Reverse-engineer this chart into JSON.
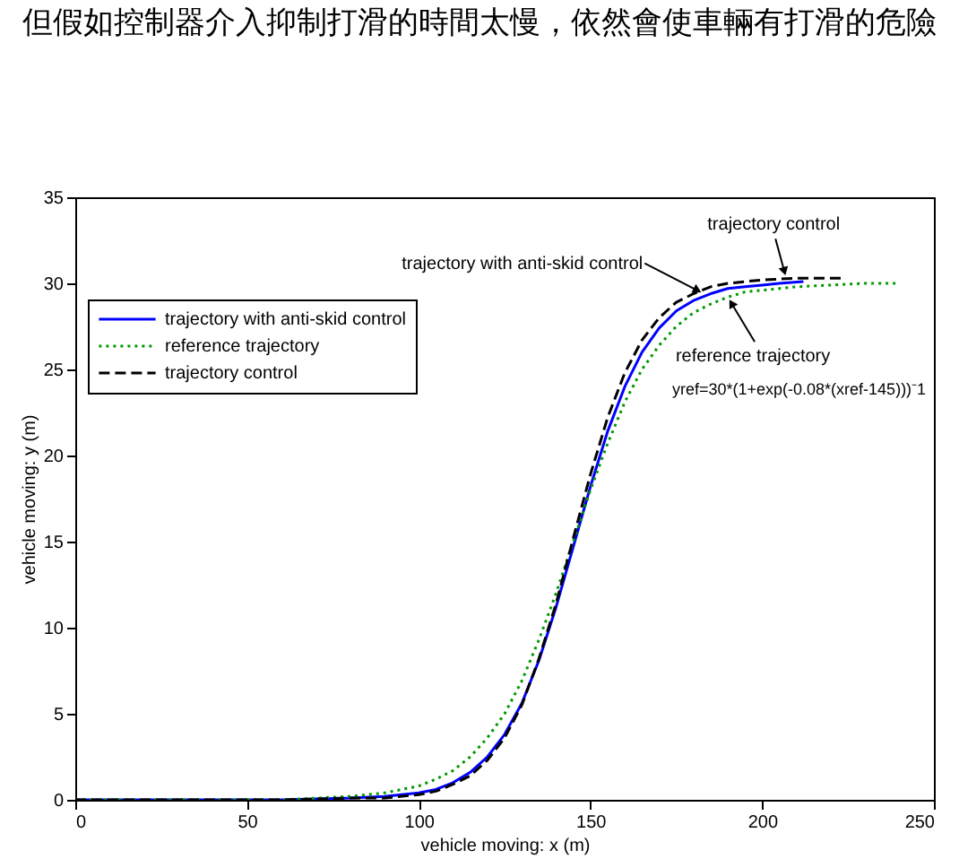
{
  "chart_data": {
    "type": "line",
    "xlabel": "vehicle moving: x (m)",
    "ylabel": "vehicle moving: y (m)",
    "xlim": [
      0,
      250
    ],
    "ylim": [
      0,
      35
    ],
    "xticks": [
      0,
      50,
      100,
      150,
      200,
      250
    ],
    "yticks": [
      0,
      5,
      10,
      15,
      20,
      25,
      30,
      35
    ],
    "legend": "top left",
    "series": [
      {
        "name": "trajectory with anti-skid control",
        "color": "#0000ff",
        "line_style": "solid",
        "x": [
          0,
          20,
          40,
          60,
          80,
          90,
          100,
          105,
          110,
          115,
          120,
          125,
          130,
          135,
          140,
          145,
          150,
          155,
          160,
          165,
          170,
          175,
          180,
          185,
          190,
          195,
          200,
          205,
          212
        ],
        "values": [
          0,
          0,
          0,
          0,
          0.1,
          0.2,
          0.4,
          0.6,
          1.0,
          1.6,
          2.5,
          3.8,
          5.6,
          8.1,
          11.2,
          14.7,
          18.2,
          21.4,
          24.0,
          26.0,
          27.4,
          28.4,
          29.0,
          29.4,
          29.7,
          29.8,
          29.9,
          30.0,
          30.1
        ]
      },
      {
        "name": "reference trajectory",
        "color": "#009900",
        "line_style": "dotted",
        "x": [
          0,
          20,
          40,
          60,
          80,
          90,
          100,
          105,
          110,
          115,
          120,
          125,
          130,
          135,
          140,
          145,
          150,
          155,
          160,
          165,
          170,
          175,
          180,
          185,
          190,
          195,
          200,
          210,
          220,
          230,
          240
        ],
        "values": [
          0,
          0,
          0,
          0,
          0.2,
          0.4,
          0.8,
          1.2,
          1.7,
          2.5,
          3.6,
          5.0,
          6.9,
          9.3,
          12.0,
          15.0,
          18.0,
          20.7,
          23.1,
          25.0,
          26.4,
          27.5,
          28.3,
          28.8,
          29.2,
          29.5,
          29.6,
          29.8,
          29.9,
          30.0,
          30.0
        ]
      },
      {
        "name": "trajectory control",
        "color": "#000000",
        "line_style": "dashed",
        "x": [
          0,
          20,
          40,
          60,
          80,
          90,
          100,
          105,
          110,
          115,
          120,
          125,
          130,
          135,
          140,
          145,
          150,
          155,
          160,
          165,
          170,
          175,
          180,
          185,
          190,
          195,
          200,
          210,
          223
        ],
        "values": [
          0,
          0,
          0,
          0,
          0.1,
          0.1,
          0.3,
          0.5,
          0.9,
          1.4,
          2.3,
          3.6,
          5.5,
          8.2,
          11.4,
          15.2,
          18.9,
          22.2,
          24.8,
          26.7,
          28.0,
          28.9,
          29.4,
          29.8,
          30.0,
          30.1,
          30.2,
          30.3,
          30.3
        ]
      }
    ],
    "annotations": [
      "但假如控制器介入抑制打滑的時間太慢，依然會使車輛有打滑的危險",
      {
        "text": "trajectory control",
        "x": 207,
        "y": 30.3
      },
      {
        "text": "trajectory with anti-skid control",
        "x": 183,
        "y": 29.4
      },
      {
        "text": "reference trajectory",
        "x": 190,
        "y": 29.2
      },
      "yref=30*(1+exp(-0.08*(xref-145)))⁻1"
    ]
  }
}
